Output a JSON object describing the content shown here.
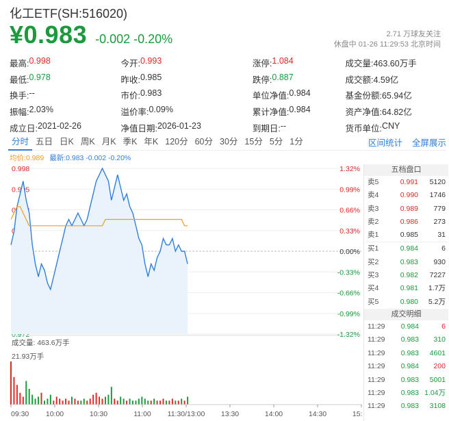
{
  "header": {
    "title": "化工ETF(SH:516020)",
    "price": "¥0.983",
    "change": "-0.002 -0.20%",
    "followers": "2.71 万球友关注",
    "status": "休盘中 01-26 11:29:53 北京时间"
  },
  "stats": [
    [
      {
        "label": "最高:",
        "value": "0.998",
        "color": "red"
      },
      {
        "label": "今开:",
        "value": "0.993",
        "color": "red"
      },
      {
        "label": "涨停:",
        "value": "1.084",
        "color": "red"
      },
      {
        "label": "成交量:",
        "value": "463.60万手",
        "color": ""
      }
    ],
    [
      {
        "label": "最低:",
        "value": "0.978",
        "color": "green"
      },
      {
        "label": "昨收:",
        "value": "0.985",
        "color": ""
      },
      {
        "label": "跌停:",
        "value": "0.887",
        "color": "green"
      },
      {
        "label": "成交额:",
        "value": "4.59亿",
        "color": ""
      }
    ],
    [
      {
        "label": "换手:",
        "value": "--",
        "color": ""
      },
      {
        "label": "市价:",
        "value": "0.983",
        "color": ""
      },
      {
        "label": "单位净值:",
        "value": "0.984",
        "color": ""
      },
      {
        "label": "基金份额:",
        "value": "65.94亿",
        "color": ""
      }
    ],
    [
      {
        "label": "振幅:",
        "value": "2.03%",
        "color": ""
      },
      {
        "label": "溢价率:",
        "value": "0.09%",
        "color": ""
      },
      {
        "label": "累计净值:",
        "value": "0.984",
        "color": ""
      },
      {
        "label": "资产净值:",
        "value": "64.82亿",
        "color": ""
      }
    ],
    [
      {
        "label": "成立日:",
        "value": "2021-02-26",
        "color": ""
      },
      {
        "label": "净值日期:",
        "value": "2026-01-23",
        "color": ""
      },
      {
        "label": "到期日:",
        "value": "--",
        "color": ""
      },
      {
        "label": "货币单位:",
        "value": "CNY",
        "color": ""
      }
    ]
  ],
  "tabs": [
    "分时",
    "五日",
    "日K",
    "周K",
    "月K",
    "季K",
    "年K",
    "120分",
    "60分",
    "30分",
    "15分",
    "5分",
    "1分"
  ],
  "tabs_right": [
    "区间统计",
    "全屏展示"
  ],
  "legend": {
    "avg": "均价:0.989",
    "latest": "最新:0.983 -0.002 -0.20%"
  },
  "volume_labels": {
    "title": "成交量: 463.6万手",
    "max": "21.93万手"
  },
  "orderbook": {
    "title": "五档盘口",
    "asks": [
      {
        "label": "卖5",
        "price": "0.991",
        "vol": "5120",
        "color": "red"
      },
      {
        "label": "卖4",
        "price": "0.990",
        "vol": "1746",
        "color": "red"
      },
      {
        "label": "卖3",
        "price": "0.989",
        "vol": "779",
        "color": "red"
      },
      {
        "label": "卖2",
        "price": "0.986",
        "vol": "273",
        "color": "red"
      },
      {
        "label": "卖1",
        "price": "0.985",
        "vol": "31",
        "color": ""
      }
    ],
    "bids": [
      {
        "label": "买1",
        "price": "0.984",
        "vol": "6",
        "color": "green"
      },
      {
        "label": "买2",
        "price": "0.983",
        "vol": "930",
        "color": "green"
      },
      {
        "label": "买3",
        "price": "0.982",
        "vol": "7227",
        "color": "green"
      },
      {
        "label": "买4",
        "price": "0.981",
        "vol": "1.7万",
        "color": "green"
      },
      {
        "label": "买5",
        "price": "0.980",
        "vol": "5.2万",
        "color": "green"
      }
    ],
    "trades_title": "成交明细",
    "trades": [
      {
        "time": "11:29",
        "price": "0.984",
        "vol": "6",
        "vcolor": "red"
      },
      {
        "time": "11:29",
        "price": "0.983",
        "vol": "310",
        "vcolor": "green"
      },
      {
        "time": "11:29",
        "price": "0.983",
        "vol": "4601",
        "vcolor": "green"
      },
      {
        "time": "11:29",
        "price": "0.984",
        "vol": "200",
        "vcolor": "red"
      },
      {
        "time": "11:29",
        "price": "0.983",
        "vol": "5001",
        "vcolor": "green"
      },
      {
        "time": "11:29",
        "price": "0.983",
        "vol": "1.04万",
        "vcolor": "green"
      },
      {
        "time": "11:29",
        "price": "0.983",
        "vol": "3108",
        "vcolor": "green"
      }
    ]
  },
  "colors": {
    "up": "#d82c28",
    "down": "#1a9a3c",
    "line": "#2f7fd8",
    "avg": "#f39b1e"
  },
  "chart_data": {
    "type": "line",
    "prev_close": 0.985,
    "y_labels_left": [
      "0.998",
      "0.995",
      "0.992",
      "0.988",
      "0.985",
      "0.982",
      "0.978",
      "0.975",
      "0.972"
    ],
    "y_labels_right": [
      "1.32%",
      "0.99%",
      "0.66%",
      "0.33%",
      "0.00%",
      "-0.33%",
      "-0.66%",
      "-0.99%",
      "-1.32%"
    ],
    "ylim": [
      0.972,
      0.998
    ],
    "x_labels": [
      "09:30",
      "10:00",
      "10:30",
      "11:00",
      "11:30/13:00",
      "13:30",
      "14:00",
      "14:30",
      "15:00"
    ],
    "series": [
      {
        "values": [
          0.986,
          0.988,
          0.992,
          0.994,
          0.996,
          0.993,
          0.991,
          0.986,
          0.983,
          0.981,
          0.983,
          0.982,
          0.98,
          0.979,
          0.981,
          0.983,
          0.985,
          0.987,
          0.989,
          0.99,
          0.989,
          0.99,
          0.991,
          0.99,
          0.989,
          0.99,
          0.992,
          0.994,
          0.996,
          0.997,
          0.998,
          0.997,
          0.996,
          0.993,
          0.995,
          0.997,
          0.995,
          0.993,
          0.994,
          0.992,
          0.991,
          0.989,
          0.987,
          0.986,
          0.983,
          0.981,
          0.983,
          0.982,
          0.984,
          0.985,
          0.987,
          0.986,
          0.986,
          0.987,
          0.985,
          0.986,
          0.985,
          0.985,
          0.983
        ]
      },
      {
        "values": [
          0.99,
          0.991,
          0.992,
          0.992,
          0.991,
          0.99,
          0.989,
          0.989,
          0.989,
          0.989,
          0.989,
          0.989,
          0.989,
          0.989,
          0.989,
          0.989,
          0.989,
          0.989,
          0.989,
          0.989,
          0.989,
          0.989,
          0.989,
          0.989,
          0.989,
          0.989,
          0.989,
          0.989,
          0.989,
          0.989,
          0.989,
          0.99,
          0.99,
          0.99,
          0.99,
          0.99,
          0.99,
          0.99,
          0.99,
          0.99,
          0.99,
          0.99,
          0.99,
          0.99,
          0.99,
          0.99,
          0.99,
          0.99,
          0.99,
          0.99,
          0.99,
          0.99,
          0.99,
          0.99,
          0.99,
          0.99,
          0.99,
          0.989,
          0.989
        ]
      }
    ],
    "volume": [
      21.93,
      14,
      10,
      6,
      4,
      12,
      8,
      5,
      3,
      4,
      6,
      2,
      3,
      5,
      2,
      4,
      3,
      2,
      3,
      2,
      4,
      3,
      2,
      2,
      3,
      2,
      3,
      5,
      6,
      4,
      3,
      4,
      5,
      9,
      3,
      2,
      4,
      3,
      2,
      3,
      2,
      2,
      3,
      4,
      3,
      2,
      2,
      3,
      2,
      2,
      3,
      2,
      2,
      3,
      2,
      2,
      3,
      2,
      4
    ]
  }
}
